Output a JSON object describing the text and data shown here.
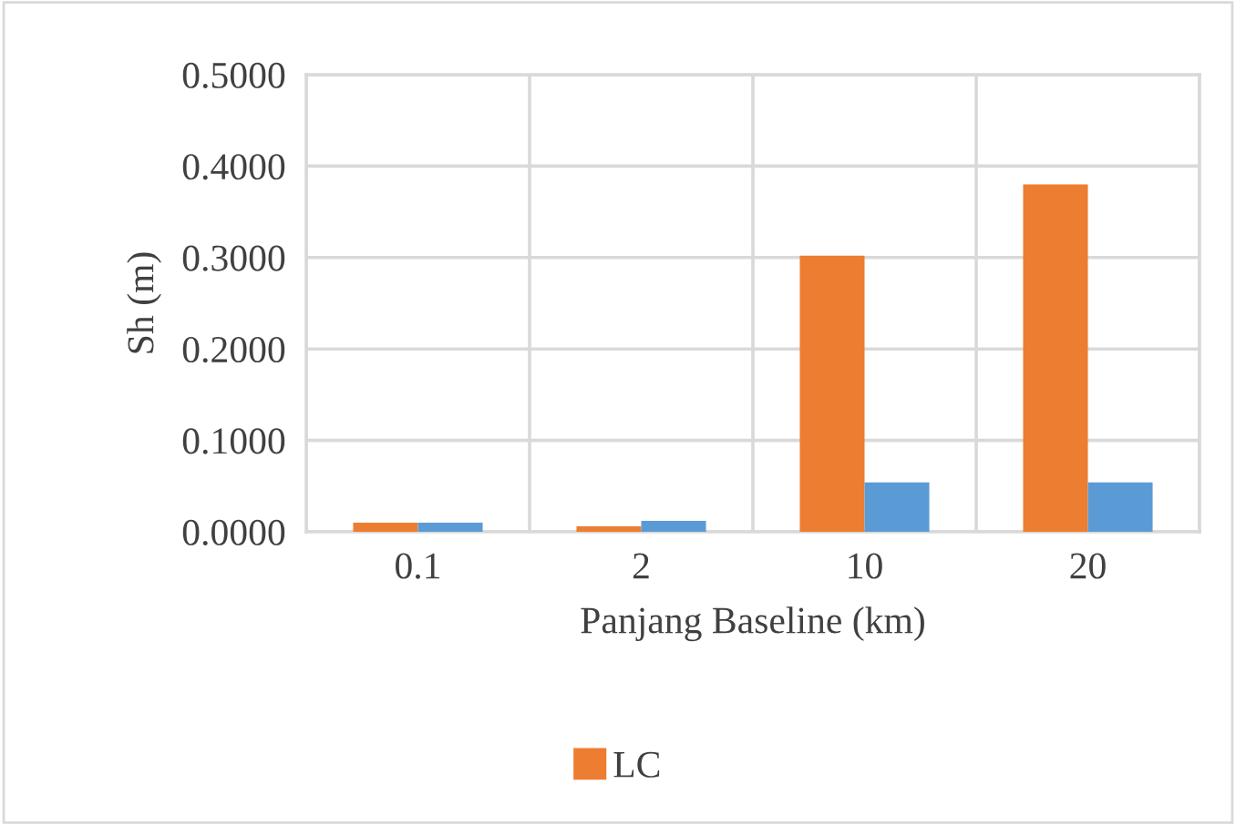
{
  "chart_data": {
    "type": "bar",
    "xlabel": "Panjang Baseline (km)",
    "ylabel": "Sh (m)",
    "categories": [
      "0.1",
      "2",
      "10",
      "20"
    ],
    "series": [
      {
        "name": "LC",
        "color": "#ed7d31",
        "values": [
          0.01,
          0.006,
          0.302,
          0.38
        ]
      },
      {
        "color": "#5b9bd5",
        "values": [
          0.01,
          0.012,
          0.054,
          0.054
        ]
      }
    ],
    "ylim": [
      0,
      0.5
    ],
    "yticks": [
      {
        "value": 0,
        "label": "0.0000"
      },
      {
        "value": 0.1,
        "label": "0.1000"
      },
      {
        "value": 0.2,
        "label": "0.2000"
      },
      {
        "value": 0.3,
        "label": "0.3000"
      },
      {
        "value": 0.4,
        "label": "0.4000"
      },
      {
        "value": 0.5,
        "label": "0.5000"
      }
    ],
    "grid": true,
    "legend": "bottom"
  }
}
